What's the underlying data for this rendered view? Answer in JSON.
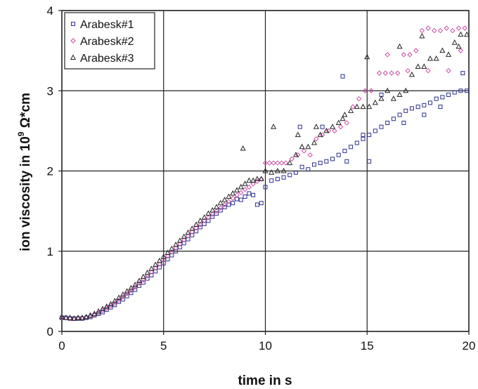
{
  "chart_data": {
    "type": "scatter",
    "xlabel": "time in s",
    "ylabel_parts": [
      "ion viscosity in 10",
      "9",
      " Ω*cm"
    ],
    "xlim": [
      0,
      20
    ],
    "ylim": [
      0,
      4
    ],
    "xticks": [
      0,
      5,
      10,
      15,
      20
    ],
    "yticks": [
      0,
      1,
      2,
      3,
      4
    ],
    "grid": true,
    "legend_position": "top-left",
    "series": [
      {
        "name": "Arabesk#1",
        "marker": "square",
        "color": "#2b2f8f",
        "points": [
          [
            0,
            0.17
          ],
          [
            0.2,
            0.17
          ],
          [
            0.4,
            0.16
          ],
          [
            0.6,
            0.16
          ],
          [
            0.8,
            0.16
          ],
          [
            1.0,
            0.16
          ],
          [
            1.2,
            0.17
          ],
          [
            1.4,
            0.18
          ],
          [
            1.6,
            0.2
          ],
          [
            1.8,
            0.22
          ],
          [
            2.0,
            0.24
          ],
          [
            2.2,
            0.27
          ],
          [
            2.4,
            0.3
          ],
          [
            2.6,
            0.33
          ],
          [
            2.8,
            0.37
          ],
          [
            3.0,
            0.4
          ],
          [
            3.2,
            0.44
          ],
          [
            3.4,
            0.48
          ],
          [
            3.6,
            0.52
          ],
          [
            3.8,
            0.57
          ],
          [
            4.0,
            0.61
          ],
          [
            4.2,
            0.66
          ],
          [
            4.4,
            0.7
          ],
          [
            4.6,
            0.75
          ],
          [
            4.8,
            0.8
          ],
          [
            5.0,
            0.85
          ],
          [
            5.2,
            0.9
          ],
          [
            5.4,
            0.95
          ],
          [
            5.6,
            1.0
          ],
          [
            5.8,
            1.05
          ],
          [
            6.0,
            1.1
          ],
          [
            6.2,
            1.15
          ],
          [
            6.4,
            1.2
          ],
          [
            6.6,
            1.25
          ],
          [
            6.8,
            1.3
          ],
          [
            7.0,
            1.34
          ],
          [
            7.2,
            1.38
          ],
          [
            7.4,
            1.43
          ],
          [
            7.6,
            1.47
          ],
          [
            7.8,
            1.51
          ],
          [
            8.0,
            1.55
          ],
          [
            8.2,
            1.58
          ],
          [
            8.4,
            1.6
          ],
          [
            8.6,
            1.65
          ],
          [
            8.8,
            1.64
          ],
          [
            9.0,
            1.68
          ],
          [
            9.2,
            1.72
          ],
          [
            9.4,
            1.7
          ],
          [
            9.6,
            1.58
          ],
          [
            9.8,
            1.6
          ],
          [
            10.0,
            1.8
          ],
          [
            10.3,
            1.88
          ],
          [
            10.6,
            1.9
          ],
          [
            10.9,
            1.92
          ],
          [
            11.2,
            1.95
          ],
          [
            11.5,
            1.98
          ],
          [
            11.8,
            2.05
          ],
          [
            12.1,
            2.02
          ],
          [
            12.4,
            2.08
          ],
          [
            12.7,
            2.1
          ],
          [
            13.0,
            2.12
          ],
          [
            13.3,
            2.15
          ],
          [
            13.6,
            2.2
          ],
          [
            13.9,
            2.25
          ],
          [
            14.2,
            2.3
          ],
          [
            14.5,
            2.35
          ],
          [
            14.8,
            2.4
          ],
          [
            15.1,
            2.45
          ],
          [
            15.4,
            2.5
          ],
          [
            15.7,
            2.55
          ],
          [
            16.0,
            2.6
          ],
          [
            16.3,
            2.65
          ],
          [
            16.6,
            2.7
          ],
          [
            16.9,
            2.75
          ],
          [
            17.2,
            2.78
          ],
          [
            17.5,
            2.8
          ],
          [
            17.8,
            2.82
          ],
          [
            18.1,
            2.85
          ],
          [
            18.4,
            2.9
          ],
          [
            18.7,
            2.92
          ],
          [
            19.0,
            2.95
          ],
          [
            19.3,
            2.98
          ],
          [
            19.6,
            3.0
          ],
          [
            19.9,
            3.0
          ],
          [
            13.8,
            3.18
          ],
          [
            14.0,
            2.12
          ],
          [
            15.1,
            2.12
          ],
          [
            11.7,
            2.55
          ],
          [
            12.8,
            2.55
          ],
          [
            14.8,
            2.45
          ],
          [
            15.7,
            2.95
          ],
          [
            16.8,
            2.6
          ],
          [
            17.8,
            2.7
          ],
          [
            18.6,
            2.8
          ],
          [
            19.7,
            3.22
          ]
        ]
      },
      {
        "name": "Arabesk#2",
        "marker": "diamond",
        "color": "#cc4fa8",
        "points": [
          [
            0,
            0.17
          ],
          [
            0.2,
            0.17
          ],
          [
            0.4,
            0.16
          ],
          [
            0.6,
            0.16
          ],
          [
            0.8,
            0.17
          ],
          [
            1.0,
            0.17
          ],
          [
            1.2,
            0.18
          ],
          [
            1.4,
            0.19
          ],
          [
            1.6,
            0.21
          ],
          [
            1.8,
            0.23
          ],
          [
            2.0,
            0.26
          ],
          [
            2.2,
            0.29
          ],
          [
            2.4,
            0.32
          ],
          [
            2.6,
            0.35
          ],
          [
            2.8,
            0.39
          ],
          [
            3.0,
            0.43
          ],
          [
            3.2,
            0.47
          ],
          [
            3.4,
            0.51
          ],
          [
            3.6,
            0.55
          ],
          [
            3.8,
            0.6
          ],
          [
            4.0,
            0.64
          ],
          [
            4.2,
            0.69
          ],
          [
            4.4,
            0.74
          ],
          [
            4.6,
            0.79
          ],
          [
            4.8,
            0.84
          ],
          [
            5.0,
            0.89
          ],
          [
            5.2,
            0.94
          ],
          [
            5.4,
            0.99
          ],
          [
            5.6,
            1.04
          ],
          [
            5.8,
            1.09
          ],
          [
            6.0,
            1.14
          ],
          [
            6.2,
            1.19
          ],
          [
            6.4,
            1.24
          ],
          [
            6.6,
            1.29
          ],
          [
            6.8,
            1.33
          ],
          [
            7.0,
            1.38
          ],
          [
            7.2,
            1.42
          ],
          [
            7.4,
            1.46
          ],
          [
            7.6,
            1.5
          ],
          [
            7.8,
            1.54
          ],
          [
            8.0,
            1.58
          ],
          [
            8.2,
            1.62
          ],
          [
            8.4,
            1.66
          ],
          [
            8.6,
            1.7
          ],
          [
            8.8,
            1.73
          ],
          [
            9.0,
            1.77
          ],
          [
            9.2,
            1.8
          ],
          [
            9.4,
            1.84
          ],
          [
            9.6,
            1.87
          ],
          [
            9.8,
            1.9
          ],
          [
            10.0,
            2.1
          ],
          [
            10.2,
            2.1
          ],
          [
            10.4,
            2.1
          ],
          [
            10.6,
            2.1
          ],
          [
            10.8,
            2.1
          ],
          [
            11.0,
            2.1
          ],
          [
            11.3,
            2.15
          ],
          [
            11.6,
            2.2
          ],
          [
            11.9,
            2.25
          ],
          [
            12.2,
            2.2
          ],
          [
            12.5,
            2.4
          ],
          [
            12.8,
            2.45
          ],
          [
            13.1,
            2.5
          ],
          [
            13.4,
            2.5
          ],
          [
            13.7,
            2.55
          ],
          [
            14.0,
            2.6
          ],
          [
            14.3,
            2.8
          ],
          [
            14.6,
            2.9
          ],
          [
            14.9,
            3.0
          ],
          [
            15.2,
            3.0
          ],
          [
            15.6,
            3.22
          ],
          [
            15.9,
            3.22
          ],
          [
            16.2,
            3.22
          ],
          [
            16.5,
            3.22
          ],
          [
            16.8,
            3.45
          ],
          [
            17.1,
            3.45
          ],
          [
            17.4,
            3.5
          ],
          [
            17.7,
            3.75
          ],
          [
            18.0,
            3.78
          ],
          [
            18.3,
            3.75
          ],
          [
            18.6,
            3.75
          ],
          [
            18.9,
            3.78
          ],
          [
            19.2,
            3.75
          ],
          [
            19.5,
            3.78
          ],
          [
            19.8,
            3.78
          ],
          [
            16.0,
            3.45
          ],
          [
            17.0,
            3.25
          ],
          [
            18.0,
            3.25
          ],
          [
            19.0,
            3.25
          ],
          [
            19.6,
            3.5
          ]
        ]
      },
      {
        "name": "Arabesk#3",
        "marker": "triangle",
        "color": "#222222",
        "points": [
          [
            0,
            0.18
          ],
          [
            0.2,
            0.17
          ],
          [
            0.4,
            0.17
          ],
          [
            0.6,
            0.16
          ],
          [
            0.8,
            0.17
          ],
          [
            1.0,
            0.17
          ],
          [
            1.2,
            0.18
          ],
          [
            1.4,
            0.2
          ],
          [
            1.6,
            0.22
          ],
          [
            1.8,
            0.25
          ],
          [
            2.0,
            0.28
          ],
          [
            2.2,
            0.31
          ],
          [
            2.4,
            0.34
          ],
          [
            2.6,
            0.38
          ],
          [
            2.8,
            0.42
          ],
          [
            3.0,
            0.46
          ],
          [
            3.2,
            0.5
          ],
          [
            3.4,
            0.54
          ],
          [
            3.6,
            0.58
          ],
          [
            3.8,
            0.63
          ],
          [
            4.0,
            0.68
          ],
          [
            4.2,
            0.73
          ],
          [
            4.4,
            0.78
          ],
          [
            4.6,
            0.83
          ],
          [
            4.8,
            0.88
          ],
          [
            5.0,
            0.93
          ],
          [
            5.2,
            0.98
          ],
          [
            5.4,
            1.03
          ],
          [
            5.6,
            1.08
          ],
          [
            5.8,
            1.13
          ],
          [
            6.0,
            1.18
          ],
          [
            6.2,
            1.23
          ],
          [
            6.4,
            1.28
          ],
          [
            6.6,
            1.33
          ],
          [
            6.8,
            1.38
          ],
          [
            7.0,
            1.42
          ],
          [
            7.2,
            1.47
          ],
          [
            7.4,
            1.51
          ],
          [
            7.6,
            1.55
          ],
          [
            7.8,
            1.6
          ],
          [
            8.0,
            1.64
          ],
          [
            8.2,
            1.68
          ],
          [
            8.4,
            1.72
          ],
          [
            8.6,
            1.76
          ],
          [
            8.8,
            1.8
          ],
          [
            9.0,
            1.84
          ],
          [
            9.2,
            1.88
          ],
          [
            9.4,
            1.88
          ],
          [
            9.6,
            1.9
          ],
          [
            9.8,
            1.9
          ],
          [
            10.0,
            2.0
          ],
          [
            10.3,
            1.98
          ],
          [
            10.6,
            2.0
          ],
          [
            10.9,
            2.0
          ],
          [
            11.2,
            2.1
          ],
          [
            11.5,
            2.2
          ],
          [
            11.8,
            2.3
          ],
          [
            12.1,
            2.3
          ],
          [
            12.4,
            2.35
          ],
          [
            12.7,
            2.45
          ],
          [
            13.0,
            2.5
          ],
          [
            13.3,
            2.55
          ],
          [
            13.6,
            2.6
          ],
          [
            13.9,
            2.7
          ],
          [
            14.2,
            2.75
          ],
          [
            14.5,
            2.8
          ],
          [
            14.8,
            2.8
          ],
          [
            15.1,
            2.8
          ],
          [
            15.4,
            2.85
          ],
          [
            15.7,
            2.9
          ],
          [
            16.0,
            3.0
          ],
          [
            16.3,
            2.9
          ],
          [
            16.6,
            2.95
          ],
          [
            16.9,
            3.0
          ],
          [
            17.2,
            3.2
          ],
          [
            17.5,
            3.3
          ],
          [
            17.8,
            3.3
          ],
          [
            18.1,
            3.4
          ],
          [
            18.4,
            3.4
          ],
          [
            18.7,
            3.5
          ],
          [
            19.0,
            3.45
          ],
          [
            19.3,
            3.6
          ],
          [
            19.6,
            3.7
          ],
          [
            19.9,
            3.7
          ],
          [
            8.9,
            2.28
          ],
          [
            10.4,
            2.55
          ],
          [
            11.6,
            2.45
          ],
          [
            12.5,
            2.55
          ],
          [
            13.8,
            2.65
          ],
          [
            15.0,
            3.42
          ],
          [
            16.6,
            3.55
          ],
          [
            17.7,
            3.68
          ],
          [
            19.5,
            3.55
          ]
        ]
      }
    ]
  }
}
